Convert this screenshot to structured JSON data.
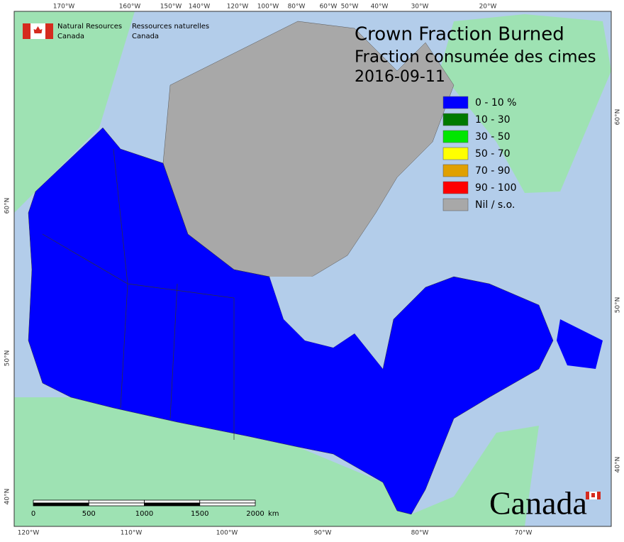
{
  "header": {
    "agency_en": [
      "Natural Resources",
      "Canada"
    ],
    "agency_fr": [
      "Ressources naturelles",
      "Canada"
    ]
  },
  "title": [
    "Crown Fraction Burned",
    "Fraction consumée des cimes",
    "2016-09-11"
  ],
  "legend": [
    {
      "label": "0 - 10 %",
      "color": "#0000ff"
    },
    {
      "label": "10 - 30",
      "color": "#007a00"
    },
    {
      "label": "30 - 50",
      "color": "#00e600"
    },
    {
      "label": "50 - 70",
      "color": "#ffff00"
    },
    {
      "label": "70 - 90",
      "color": "#e0a000"
    },
    {
      "label": "90 - 100",
      "color": "#ff0000"
    },
    {
      "label": "Nil / s.o.",
      "color": "#a8a8a8"
    }
  ],
  "graticule": {
    "top": [
      "170°W",
      "160°W",
      "150°W",
      "140°W",
      "120°W",
      "100°W",
      "80°W",
      "60°W",
      "50°W",
      "40°W",
      "30°W",
      "20°W"
    ],
    "bottom": [
      "120°W",
      "110°W",
      "100°W",
      "90°W",
      "80°W",
      "70°W"
    ],
    "left": [
      "60°N",
      "50°N",
      "40°N"
    ],
    "right": [
      "60°N",
      "50°N",
      "40°N"
    ]
  },
  "scale_bar": {
    "ticks": [
      0,
      500,
      1000,
      1500,
      2000
    ],
    "unit": "km"
  },
  "wordmark": "Canada"
}
